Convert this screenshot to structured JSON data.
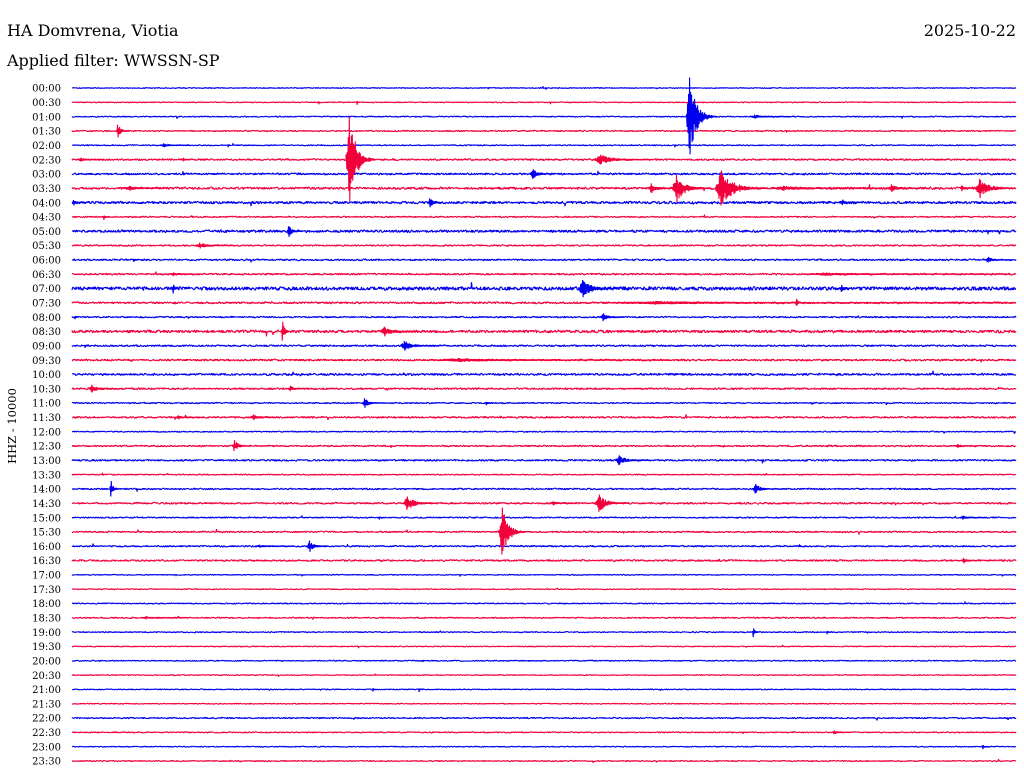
{
  "chart_data": {
    "type": "line",
    "title": "HA Domvrena, Viotia",
    "date": "2025-10-22",
    "subtitle": "Applied filter: WWSSN-SP",
    "xlabel": "",
    "ylabel": "HHZ - 10000",
    "grid": false,
    "legend": "none",
    "colors": {
      "even_rows": "#0000ee",
      "odd_rows": "#f2003c"
    },
    "rows": [
      "00:00",
      "00:30",
      "01:00",
      "01:30",
      "02:00",
      "02:30",
      "03:00",
      "03:30",
      "04:00",
      "04:30",
      "05:00",
      "05:30",
      "06:00",
      "06:30",
      "07:00",
      "07:30",
      "08:00",
      "08:30",
      "09:00",
      "09:30",
      "10:00",
      "10:30",
      "11:00",
      "11:30",
      "12:00",
      "12:30",
      "13:00",
      "13:30",
      "14:00",
      "14:30",
      "15:00",
      "15:30",
      "16:00",
      "16:30",
      "17:00",
      "17:30",
      "18:00",
      "18:30",
      "19:00",
      "19:30",
      "20:00",
      "20:30",
      "21:00",
      "21:30",
      "22:00",
      "22:30",
      "23:00",
      "23:30"
    ],
    "noise": [
      350,
      350,
      420,
      490,
      420,
      630,
      700,
      840,
      910,
      490,
      910,
      560,
      630,
      630,
      1260,
      700,
      560,
      980,
      630,
      700,
      770,
      630,
      490,
      630,
      420,
      560,
      630,
      420,
      560,
      630,
      490,
      560,
      560,
      630,
      350,
      350,
      420,
      490,
      420,
      350,
      420,
      350,
      350,
      350,
      490,
      420,
      350,
      420
    ],
    "events": [
      {
        "time": "00:37:49",
        "dur": 4,
        "amp": 1400
      },
      {
        "time": "00:39:02",
        "dur": 4,
        "amp": 1750
      },
      {
        "time": "01:19:31",
        "dur": 57,
        "amp": 28000
      },
      {
        "time": "01:21:33",
        "dur": 76,
        "amp": 1400
      },
      {
        "time": "01:31:24",
        "dur": 27,
        "amp": 4900
      },
      {
        "time": "02:02:48",
        "dur": 57,
        "amp": 1400
      },
      {
        "time": "02:04:56",
        "dur": 6,
        "amp": 1400
      },
      {
        "time": "02:30:11",
        "dur": 48,
        "amp": 1400
      },
      {
        "time": "02:33:30",
        "dur": 19,
        "amp": 1400
      },
      {
        "time": "02:38:42",
        "dur": 57,
        "amp": 30700
      },
      {
        "time": "02:46:34",
        "dur": 114,
        "amp": 3500
      },
      {
        "time": "03:14:33",
        "dur": 48,
        "amp": 3500
      },
      {
        "time": "03:31:41",
        "dur": 76,
        "amp": 1750
      },
      {
        "time": "03:48:18",
        "dur": 57,
        "amp": 3500
      },
      {
        "time": "03:49:04",
        "dur": 76,
        "amp": 9800
      },
      {
        "time": "03:50:26",
        "dur": 100,
        "amp": 12600
      },
      {
        "time": "03:52:11",
        "dur": 210,
        "amp": 1750
      },
      {
        "time": "03:55:56",
        "dur": 57,
        "amp": 2800
      },
      {
        "time": "03:58:13",
        "dur": 30,
        "amp": 2100
      },
      {
        "time": "03:58:42",
        "dur": 78,
        "amp": 7000
      },
      {
        "time": "04:00:00",
        "dur": 29,
        "amp": 2100
      },
      {
        "time": "04:11:19",
        "dur": 29,
        "amp": 3500
      },
      {
        "time": "04:24:25",
        "dur": 38,
        "amp": 2100
      },
      {
        "time": "04:30:59",
        "dur": 15,
        "amp": 2100
      },
      {
        "time": "05:06:50",
        "dur": 29,
        "amp": 4200
      },
      {
        "time": "05:33:55",
        "dur": 76,
        "amp": 2100
      },
      {
        "time": "06:01:56",
        "dur": 10,
        "amp": 1400
      },
      {
        "time": "06:29:01",
        "dur": 53,
        "amp": 2100
      },
      {
        "time": "06:33:07",
        "dur": 48,
        "amp": 1400
      },
      {
        "time": "06:53:10",
        "dur": 400,
        "amp": 1100
      },
      {
        "time": "07:03:11",
        "dur": 15,
        "amp": 3500
      },
      {
        "time": "07:16:05",
        "dur": 76,
        "amp": 6300
      },
      {
        "time": "07:24:25",
        "dur": 19,
        "amp": 2800
      },
      {
        "time": "07:47:00",
        "dur": 780,
        "amp": 1200
      },
      {
        "time": "07:52:59",
        "dur": 23,
        "amp": 2800
      },
      {
        "time": "08:00:04",
        "dur": 10,
        "amp": 1400
      },
      {
        "time": "08:16:47",
        "dur": 48,
        "amp": 2800
      },
      {
        "time": "08:36:39",
        "dur": 19,
        "amp": 7700
      },
      {
        "time": "08:39:47",
        "dur": 76,
        "amp": 3500
      },
      {
        "time": "09:00:23",
        "dur": 10,
        "amp": 1400
      },
      {
        "time": "09:10:25",
        "dur": 76,
        "amp": 3500
      },
      {
        "time": "09:41:23",
        "dur": 458,
        "amp": 1400
      },
      {
        "time": "10:30:31",
        "dur": 57,
        "amp": 2800
      },
      {
        "time": "10:36:52",
        "dur": 38,
        "amp": 2100
      },
      {
        "time": "11:09:13",
        "dur": 42,
        "amp": 3500
      },
      {
        "time": "11:13:08",
        "dur": 15,
        "amp": 1400
      },
      {
        "time": "11:33:16",
        "dur": 57,
        "amp": 1400
      },
      {
        "time": "11:35:39",
        "dur": 57,
        "amp": 2100
      },
      {
        "time": "12:35:05",
        "dur": 38,
        "amp": 4200
      },
      {
        "time": "12:58:04",
        "dur": 42,
        "amp": 1400
      },
      {
        "time": "13:17:15",
        "dur": 67,
        "amp": 3500
      },
      {
        "time": "14:01:12",
        "dur": 19,
        "amp": 6300
      },
      {
        "time": "14:21:37",
        "dur": 53,
        "amp": 3500
      },
      {
        "time": "14:40:31",
        "dur": 67,
        "amp": 4900
      },
      {
        "time": "14:45:12",
        "dur": 48,
        "amp": 1400
      },
      {
        "time": "14:46:37",
        "dur": 67,
        "amp": 6300
      },
      {
        "time": "15:09:44",
        "dur": 11,
        "amp": 1400
      },
      {
        "time": "15:28:13",
        "dur": 48,
        "amp": 1400
      },
      {
        "time": "15:43:34",
        "dur": 53,
        "amp": 17500
      },
      {
        "time": "16:05:49",
        "dur": 76,
        "amp": 1050
      },
      {
        "time": "16:07:28",
        "dur": 42,
        "amp": 4200
      },
      {
        "time": "16:58:17",
        "dur": 29,
        "amp": 2100
      },
      {
        "time": "18:32:10",
        "dur": 95,
        "amp": 1050
      },
      {
        "time": "19:21:37",
        "dur": 15,
        "amp": 3500
      },
      {
        "time": "19:23:58",
        "dur": 11,
        "amp": 1400
      },
      {
        "time": "21:09:32",
        "dur": 10,
        "amp": 1400
      },
      {
        "time": "21:11:00",
        "dur": 10,
        "amp": 1750
      },
      {
        "time": "22:54:09",
        "dur": 38,
        "amp": 1400
      },
      {
        "time": "23:28:55",
        "dur": 15,
        "amp": 1750
      }
    ]
  }
}
